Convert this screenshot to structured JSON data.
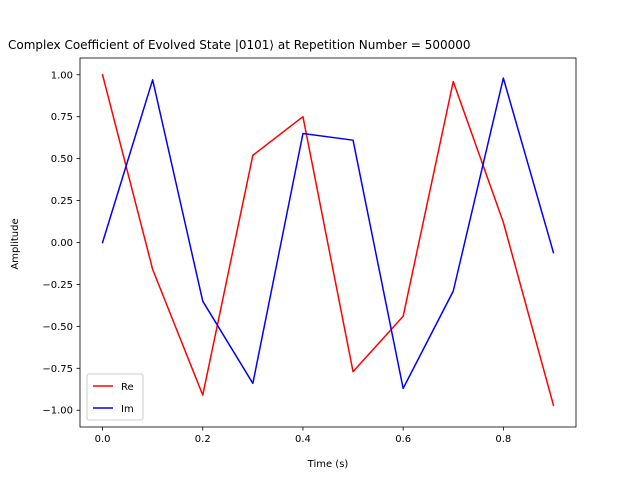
{
  "chart_data": {
    "type": "line",
    "title": "Complex Coefficient of Evolved State |0101⟩ at Repetition Number = 500000",
    "xlabel": "Time (s)",
    "ylabel": "Amplitude",
    "xlim": [
      -0.045,
      0.945
    ],
    "ylim": [
      -1.1,
      1.1
    ],
    "xticks": [
      0.0,
      0.2,
      0.4,
      0.6,
      0.8
    ],
    "xtick_labels": [
      "0.0",
      "0.2",
      "0.4",
      "0.6",
      "0.8"
    ],
    "yticks": [
      -1.0,
      -0.75,
      -0.5,
      -0.25,
      0.0,
      0.25,
      0.5,
      0.75,
      1.0
    ],
    "ytick_labels": [
      "−1.00",
      "−0.75",
      "−0.50",
      "−0.25",
      "0.00",
      "0.25",
      "0.50",
      "0.75",
      "1.00"
    ],
    "grid": false,
    "legend_position": "lower-left",
    "x": [
      0.0,
      0.1,
      0.2,
      0.3,
      0.4,
      0.5,
      0.6,
      0.7,
      0.8,
      0.9
    ],
    "series": [
      {
        "name": "Re",
        "color": "#ff0000",
        "values": [
          1.0,
          -0.16,
          -0.91,
          0.52,
          0.75,
          -0.77,
          -0.44,
          0.96,
          0.12,
          -0.97
        ]
      },
      {
        "name": "Im",
        "color": "#0000ff",
        "values": [
          0.0,
          0.97,
          -0.35,
          -0.84,
          0.65,
          0.61,
          -0.87,
          -0.29,
          0.98,
          -0.06
        ]
      }
    ]
  }
}
